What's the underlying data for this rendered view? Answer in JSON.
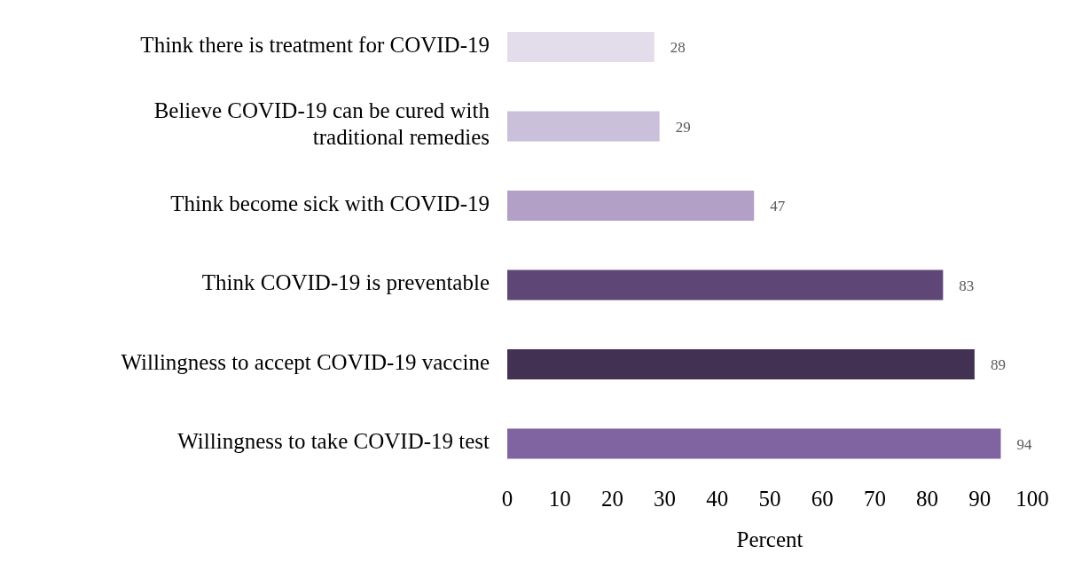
{
  "chart_data": {
    "type": "bar",
    "orientation": "horizontal",
    "xlabel": "Percent",
    "categories": [
      "Think there is treatment for COVID-19",
      "Believe COVID-19 can be cured with traditional remedies",
      "Think become sick with COVID-19",
      "Think COVID-19 is preventable",
      "Willingness to accept COVID-19 vaccine",
      "Willingness to take COVID-19 test"
    ],
    "values": [
      28,
      29,
      47,
      83,
      89,
      94
    ],
    "colors": [
      "#e3dcea",
      "#cbc0da",
      "#b3a0c6",
      "#5e4777",
      "#433153",
      "#8064a2"
    ],
    "xlim": [
      0,
      100
    ],
    "xticks": [
      0,
      10,
      20,
      30,
      40,
      50,
      60,
      70,
      80,
      90,
      100
    ],
    "grid": false,
    "data_labels": true
  }
}
